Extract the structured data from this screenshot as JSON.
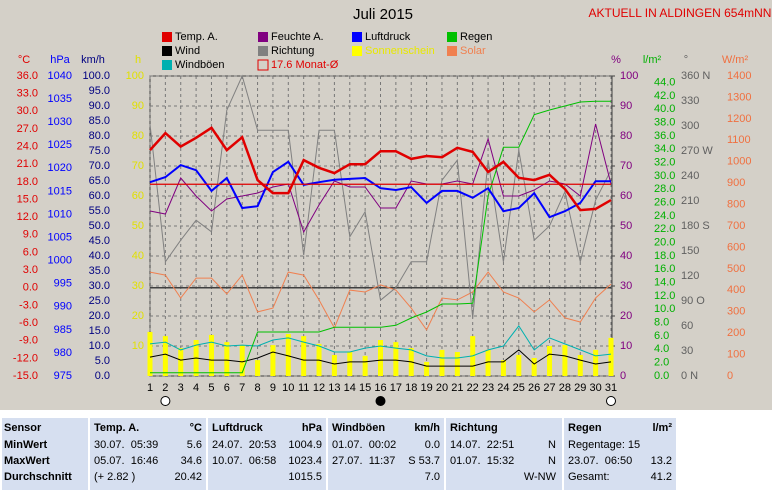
{
  "chart_data": {
    "type": "line",
    "title": "Juli 2015",
    "station": "AKTUELL IN ALDINGEN 654mNN",
    "x": [
      1,
      2,
      3,
      4,
      5,
      6,
      7,
      8,
      9,
      10,
      11,
      12,
      13,
      14,
      15,
      16,
      17,
      18,
      19,
      20,
      21,
      22,
      23,
      24,
      25,
      26,
      27,
      28,
      29,
      30,
      31
    ],
    "xlim": [
      1,
      31
    ],
    "xticks": [
      1,
      2,
      3,
      4,
      5,
      6,
      7,
      8,
      9,
      10,
      11,
      12,
      13,
      14,
      15,
      16,
      17,
      18,
      19,
      20,
      21,
      22,
      23,
      24,
      25,
      26,
      27,
      28,
      29,
      30,
      31
    ],
    "grid": true,
    "axes": [
      {
        "id": "temp",
        "title": "°C",
        "color": "#e00000",
        "side": "left",
        "ylim": [
          -15,
          36
        ],
        "yticks": [
          {
            "value": 36,
            "label": "36.0"
          },
          {
            "value": 33,
            "label": "33.0"
          },
          {
            "value": 30,
            "label": "30.0"
          },
          {
            "value": 27,
            "label": "27.0"
          },
          {
            "value": 24,
            "label": "24.0"
          },
          {
            "value": 21,
            "label": "21.0"
          },
          {
            "value": 18,
            "label": "18.0"
          },
          {
            "value": 15,
            "label": "15.0"
          },
          {
            "value": 12,
            "label": "12.0"
          },
          {
            "value": 9,
            "label": "9.0"
          },
          {
            "value": 6,
            "label": "6.0"
          },
          {
            "value": 3,
            "label": "3.0"
          },
          {
            "value": 0,
            "label": "0.0"
          },
          {
            "value": -3,
            "label": "-3.0"
          },
          {
            "value": -6,
            "label": "-6.0"
          },
          {
            "value": -9,
            "label": "-9.0"
          },
          {
            "value": -12,
            "label": "-12.0"
          },
          {
            "value": -15,
            "label": "-15.0"
          }
        ]
      },
      {
        "id": "press",
        "title": "hPa",
        "color": "#0000ff",
        "side": "left",
        "ylim": [
          975,
          1040
        ],
        "yticks": [
          1040,
          1035,
          1030,
          1025,
          1020,
          1015,
          1010,
          1005,
          1000,
          995,
          990,
          985,
          980,
          975
        ]
      },
      {
        "id": "wind",
        "title": "km/h",
        "color": "#000080",
        "side": "left",
        "ylim": [
          0,
          100
        ],
        "yticks": [
          {
            "value": 100,
            "label": "100.0"
          },
          {
            "value": 95,
            "label": "95.0"
          },
          {
            "value": 90,
            "label": "90.0"
          },
          {
            "value": 85,
            "label": "85.0"
          },
          {
            "value": 80,
            "label": "80.0"
          },
          {
            "value": 75,
            "label": "75.0"
          },
          {
            "value": 70,
            "label": "70.0"
          },
          {
            "value": 65,
            "label": "65.0"
          },
          {
            "value": 60,
            "label": "60.0"
          },
          {
            "value": 55,
            "label": "55.0"
          },
          {
            "value": 50,
            "label": "50.0"
          },
          {
            "value": 45,
            "label": "45.0"
          },
          {
            "value": 40,
            "label": "40.0"
          },
          {
            "value": 35,
            "label": "35.0"
          },
          {
            "value": 30,
            "label": "30.0"
          },
          {
            "value": 25,
            "label": "25.0"
          },
          {
            "value": 20,
            "label": "20.0"
          },
          {
            "value": 15,
            "label": "15.0"
          },
          {
            "value": 10,
            "label": "10.0"
          },
          {
            "value": 5,
            "label": "5.0"
          },
          {
            "value": 0,
            "label": "0.0"
          }
        ]
      },
      {
        "id": "sun",
        "title": "h",
        "color": "#e0e000",
        "side": "left",
        "ylim": [
          0,
          100
        ],
        "yticks": [
          100,
          90,
          80,
          70,
          60,
          50,
          40,
          30,
          20,
          10
        ]
      },
      {
        "id": "hum",
        "title": "%",
        "color": "#800080",
        "side": "right",
        "ylim": [
          0,
          100
        ],
        "yticks": [
          100,
          90,
          80,
          70,
          60,
          50,
          40,
          30,
          20,
          10,
          0
        ]
      },
      {
        "id": "rain",
        "title": "l/m²",
        "color": "#00b000",
        "side": "right",
        "ylim": [
          0,
          45
        ],
        "yticks": [
          {
            "value": 44,
            "label": "44.0"
          },
          {
            "value": 42,
            "label": "42.0"
          },
          {
            "value": 40,
            "label": "40.0"
          },
          {
            "value": 38,
            "label": "38.0"
          },
          {
            "value": 36,
            "label": "36.0"
          },
          {
            "value": 34,
            "label": "34.0"
          },
          {
            "value": 32,
            "label": "32.0"
          },
          {
            "value": 30,
            "label": "30.0"
          },
          {
            "value": 28,
            "label": "28.0"
          },
          {
            "value": 26,
            "label": "26.0"
          },
          {
            "value": 24,
            "label": "24.0"
          },
          {
            "value": 22,
            "label": "22.0"
          },
          {
            "value": 20,
            "label": "20.0"
          },
          {
            "value": 18,
            "label": "18.0"
          },
          {
            "value": 16,
            "label": "16.0"
          },
          {
            "value": 14,
            "label": "14.0"
          },
          {
            "value": 12,
            "label": "12.0"
          },
          {
            "value": 10,
            "label": "10.0"
          },
          {
            "value": 8,
            "label": "8.0"
          },
          {
            "value": 6,
            "label": "6.0"
          },
          {
            "value": 4,
            "label": "4.0"
          },
          {
            "value": 2,
            "label": "2.0"
          },
          {
            "value": 0,
            "label": "0.0"
          }
        ]
      },
      {
        "id": "dir",
        "title": "°",
        "color": "#606060",
        "side": "right",
        "ylim": [
          0,
          360
        ],
        "yticks": [
          {
            "value": 360,
            "label": "360 N"
          },
          330,
          300,
          {
            "value": 270,
            "label": "270 W"
          },
          240,
          210,
          {
            "value": 180,
            "label": "180 S"
          },
          150,
          120,
          {
            "value": 90,
            "label": "90 O"
          },
          60,
          30,
          {
            "value": 0,
            "label": "0 N"
          }
        ]
      },
      {
        "id": "solar",
        "title": "W/m²",
        "color": "#f07040",
        "side": "right",
        "ylim": [
          0,
          1400
        ],
        "yticks": [
          1400,
          1300,
          1200,
          1100,
          1000,
          900,
          800,
          700,
          600,
          500,
          400,
          300,
          200,
          100,
          0
        ]
      }
    ],
    "series": [
      {
        "name": "Sonnenschein",
        "color": "#ffff00",
        "axis": "sun",
        "type": "bar",
        "values": [
          14.7,
          13.3,
          9.3,
          12,
          13.7,
          11.3,
          10.3,
          5.3,
          10.3,
          14,
          13.3,
          10.7,
          7,
          8,
          6.7,
          12,
          11.3,
          9.3,
          4.7,
          8.7,
          8,
          13.3,
          8.7,
          5.3,
          7,
          6,
          10,
          10.3,
          7,
          8.7,
          12.7
        ]
      },
      {
        "name": "Solar",
        "color": "#f08050",
        "axis": "solar",
        "line_width": 1,
        "values": [
          485,
          471,
          364,
          457,
          457,
          383,
          471,
          299,
          317,
          485,
          471,
          355,
          224,
          401,
          392,
          425,
          401,
          317,
          215,
          364,
          355,
          392,
          485,
          392,
          364,
          299,
          355,
          271,
          252,
          364,
          429
        ]
      },
      {
        "name": "Richtung",
        "color": "#808080",
        "axis": "dir",
        "line_width": 1,
        "values": [
          302,
          137,
          163,
          187,
          173,
          319,
          360,
          295,
          295,
          295,
          145,
          295,
          295,
          167,
          197,
          91,
          106,
          137,
          137,
          235,
          259,
          70,
          259,
          137,
          271,
          163,
          180,
          221,
          137,
          211,
          247
        ]
      },
      {
        "name": "Feuchte A.",
        "color": "#800080",
        "axis": "hum",
        "line_width": 1,
        "values": [
          55,
          54,
          66,
          60,
          55,
          59,
          60,
          61,
          63,
          64,
          48,
          57,
          65,
          63,
          63,
          56,
          56,
          65,
          64,
          64,
          65,
          64,
          79,
          60,
          60,
          62,
          65,
          64,
          60,
          84,
          64
        ]
      },
      {
        "name": "Windböen",
        "color": "#00b0b0",
        "axis": "wind",
        "line_width": 1,
        "values": [
          10.7,
          11.3,
          8.7,
          10.3,
          11.3,
          10,
          10.3,
          10,
          12,
          12.7,
          11.3,
          10,
          8,
          8,
          9.3,
          10,
          9.3,
          8.7,
          6.7,
          6,
          6,
          6.7,
          8.7,
          10,
          16.7,
          8.7,
          12.7,
          10.7,
          8.7,
          6.7,
          7.3
        ]
      },
      {
        "name": "Wind",
        "color": "#000000",
        "axis": "wind",
        "line_width": 1,
        "values": [
          6.3,
          7.3,
          5.3,
          6,
          5.3,
          5.3,
          4.7,
          6,
          8,
          6.7,
          5.3,
          5.3,
          4,
          4.7,
          4.7,
          5.3,
          5.3,
          4.7,
          3.3,
          3.3,
          3.3,
          3.3,
          4.7,
          4.7,
          8.7,
          4,
          7.3,
          6.7,
          5.3,
          4,
          4.7
        ]
      },
      {
        "name": "Regen",
        "color": "#00c000",
        "axis": "rain",
        "line_width": 1,
        "values": [
          0.5,
          0.5,
          0.5,
          0.5,
          0.5,
          0.5,
          0.5,
          6.6,
          6.6,
          6.6,
          6.6,
          6.6,
          7.3,
          7.3,
          7.3,
          7.3,
          7.6,
          8.7,
          9.6,
          10.8,
          10.8,
          10.9,
          27,
          34.3,
          34.3,
          39.2,
          39.9,
          40.5,
          41.1,
          41.2,
          41.2
        ]
      },
      {
        "name": "Luftdruck",
        "color": "#0000ff",
        "axis": "press",
        "line_width": 2,
        "values": [
          1017,
          1018.1,
          1020.7,
          1019.6,
          1015.1,
          1017.9,
          1011.4,
          1011.8,
          1019.2,
          1021.4,
          1016.4,
          1017,
          1017.5,
          1017.7,
          1017.9,
          1015.7,
          1015.3,
          1015.9,
          1012.5,
          1015.1,
          1015.1,
          1013.6,
          1015.7,
          1010.7,
          1011.4,
          1014.6,
          1009.4,
          1010.7,
          1012.5,
          1017.2,
          1017.2
        ]
      },
      {
        "name": "Temp. A.",
        "color": "#e00000",
        "axis": "temp",
        "line_width": 2.5,
        "values": [
          23.4,
          26.3,
          24,
          25.5,
          27.2,
          23.4,
          25.6,
          18.3,
          16.1,
          16.1,
          21.7,
          20.4,
          19.5,
          21,
          21,
          23.2,
          23.2,
          21.9,
          22.4,
          22.2,
          23.8,
          23.1,
          19.7,
          21.4,
          18.7,
          18.3,
          19.2,
          16.8,
          13.2,
          13.4,
          14.9
        ]
      }
    ],
    "monthly_avg": {
      "label": "17.6 Monat-Ø",
      "value": 17.6,
      "axis": "temp",
      "color": "#e00000"
    }
  },
  "table": {
    "header": [
      [
        "Sensor"
      ],
      [
        "Temp. A.",
        "°C"
      ],
      [
        "Luftdruck",
        "hPa"
      ],
      [
        "Windböen",
        "km/h"
      ],
      [
        "Richtung"
      ],
      [
        "Regen",
        "l/m²"
      ]
    ],
    "rows": [
      [
        [
          "MinWert"
        ],
        [
          "30.07.  05:39",
          "5.6"
        ],
        [
          "24.07.  20:53",
          "1004.9"
        ],
        [
          "01.07.  00:02",
          "0.0"
        ],
        [
          "14.07.  22:51",
          "N"
        ],
        [
          "Regentage: 15"
        ]
      ],
      [
        [
          "MaxWert"
        ],
        [
          "05.07.  16:46",
          "34.6"
        ],
        [
          "10.07.  06:58",
          "1023.4"
        ],
        [
          "27.07.  11:37",
          "S 53.7"
        ],
        [
          "01.07.  15:32",
          "N"
        ],
        [
          "23.07.  06:50",
          "13.2"
        ]
      ],
      [
        [
          "Durchschnitt"
        ],
        [
          "(+ 2.82 )",
          "20.42"
        ],
        [
          "1015.5"
        ],
        [
          "7.0"
        ],
        [
          "W-NW"
        ],
        [
          "Gesamt:",
          "41.2"
        ]
      ]
    ]
  }
}
